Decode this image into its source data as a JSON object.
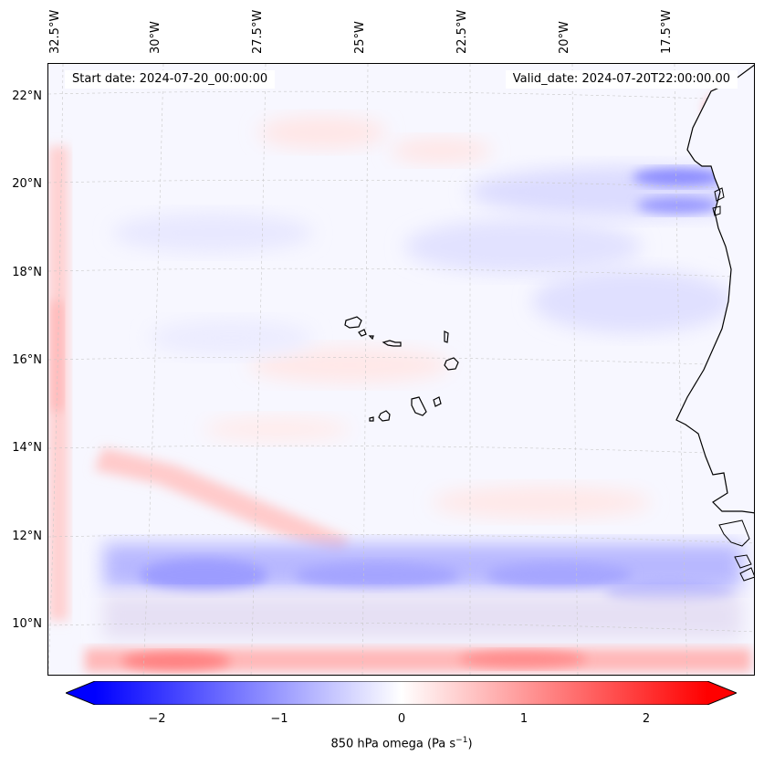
{
  "header": {
    "start_date": "Start date: 2024-07-20_00:00:00",
    "valid_date": "Valid_date: 2024-07-20T22:00:00.00"
  },
  "longitude_labels": [
    "32.5°W",
    "30°W",
    "27.5°W",
    "25°W",
    "22.5°W",
    "20°W",
    "17.5°W"
  ],
  "latitude_labels": [
    "22°N",
    "20°N",
    "18°N",
    "16°N",
    "14°N",
    "12°N",
    "10°N"
  ],
  "colorbar": {
    "label_prefix": "850 hPa omega (Pa s",
    "label_exp": "−1",
    "label_suffix": ")",
    "ticks": [
      "−2",
      "−1",
      "0",
      "1",
      "2"
    ],
    "min": -2.6,
    "max": 2.6,
    "negative_color": "#0000ff",
    "positive_color": "#ff0000",
    "neutral_color": "#ffffff"
  },
  "map": {
    "background_color": "#f7f7ff",
    "coastline_color": "#000000",
    "grid_color": "#c8c8c8"
  }
}
